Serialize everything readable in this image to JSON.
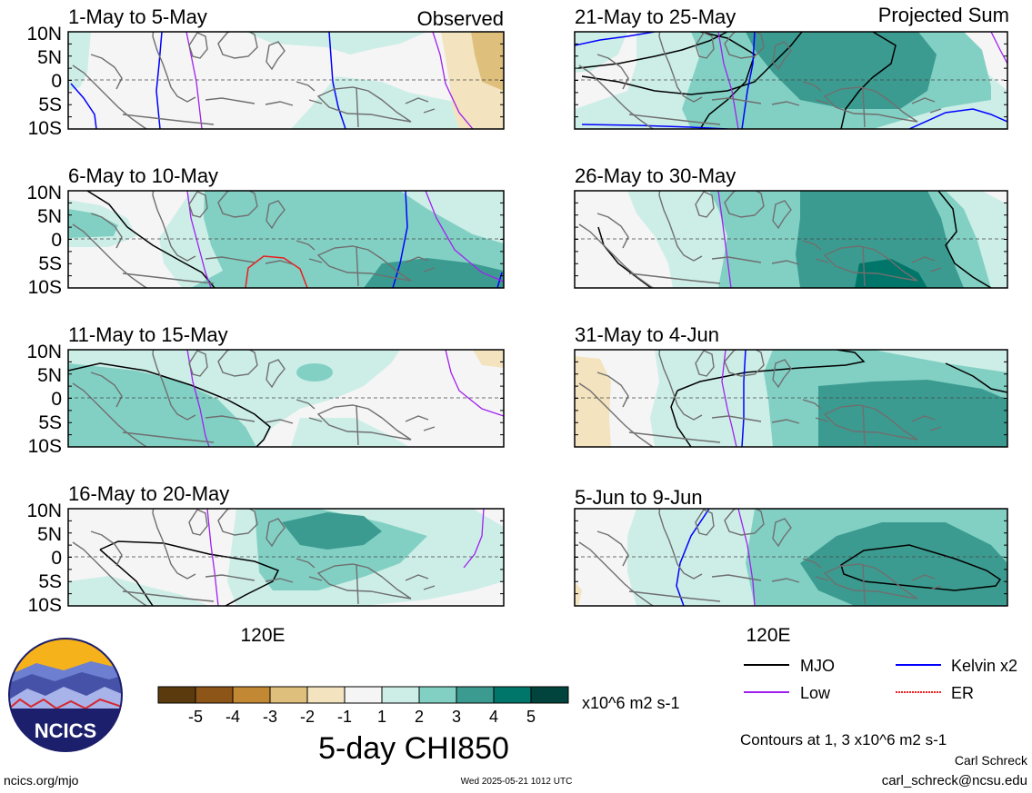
{
  "header": {
    "observed_label": "Observed",
    "projected_label": "Projected Sum"
  },
  "colors": {
    "neg5": "#5b3b0d",
    "neg4": "#8e5518",
    "neg3": "#c38833",
    "neg2": "#dfbf7c",
    "neg1": "#f3e4bf",
    "neutral": "#f5f5f5",
    "pos1": "#cdeee7",
    "pos2": "#82d0c4",
    "pos3": "#3c9b90",
    "pos4": "#00766a",
    "pos5": "#00443d",
    "mjo": "#000000",
    "low": "#a020f0",
    "kelvin": "#0000ff",
    "er": "#ee1c1c"
  },
  "chart_data": {
    "type": "heatmap",
    "title": "5-day CHI850",
    "units": "x10^6 m2 s-1",
    "lat_labels": [
      "10N",
      "5N",
      "0",
      "5S",
      "10S"
    ],
    "lon_label": "120E",
    "colorbar_ticks": [
      "-5",
      "-4",
      "-3",
      "-2",
      "-1",
      "1",
      "2",
      "3",
      "4",
      "5"
    ],
    "contour_note": "Contours at 1, 3 x10^6 m2 s-1",
    "legend": [
      {
        "name": "MJO",
        "color": "#000000"
      },
      {
        "name": "Kelvin x2",
        "color": "#0000ff"
      },
      {
        "name": "Low",
        "color": "#a020f0"
      },
      {
        "name": "ER",
        "color": "#ee1c1c"
      }
    ],
    "panels": [
      {
        "period": "1-May to 5-May",
        "kind": "observed"
      },
      {
        "period": "6-May to 10-May",
        "kind": "observed"
      },
      {
        "period": "11-May to 15-May",
        "kind": "observed"
      },
      {
        "period": "16-May to 20-May",
        "kind": "observed"
      },
      {
        "period": "21-May to 25-May",
        "kind": "projected"
      },
      {
        "period": "26-May to 30-May",
        "kind": "projected"
      },
      {
        "period": "31-May to 4-Jun",
        "kind": "projected"
      },
      {
        "period": "5-Jun to 9-Jun",
        "kind": "projected"
      }
    ]
  },
  "logo": {
    "text": "NCICS"
  },
  "footer": {
    "url": "ncics.org/mjo",
    "timestamp": "Wed 2025-05-21 1012 UTC",
    "author": "Carl Schreck",
    "email": "carl_schreck@ncsu.edu"
  }
}
